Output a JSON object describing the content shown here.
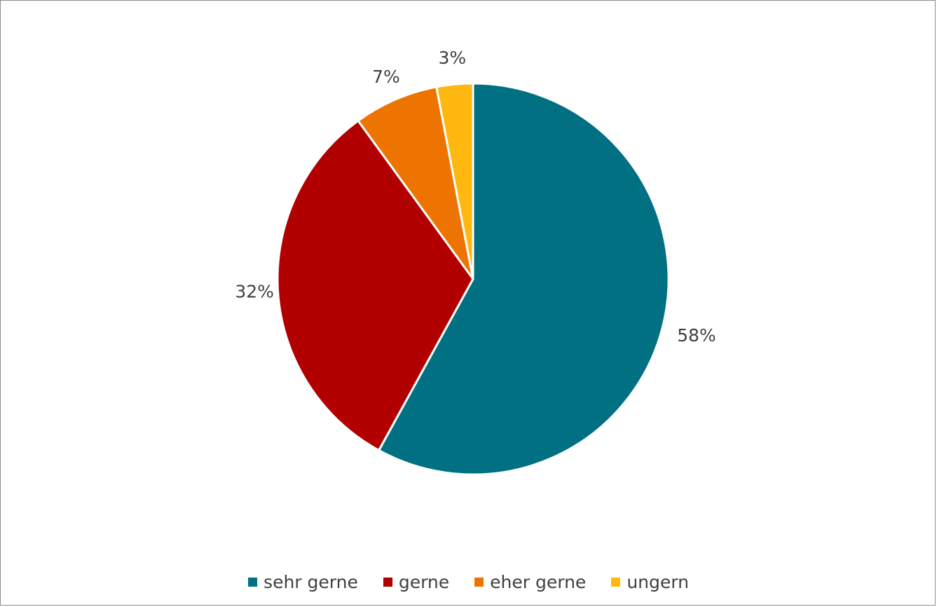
{
  "chart_data": {
    "type": "pie",
    "title": "",
    "categories": [
      "sehr gerne",
      "gerne",
      "eher gerne",
      "ungern"
    ],
    "values": [
      58,
      32,
      7,
      3
    ],
    "labels": [
      "58%",
      "32%",
      "7%",
      "3%"
    ],
    "colors": [
      "#007082",
      "#B20000",
      "#ED7400",
      "#FFB80F"
    ],
    "legend_position": "bottom",
    "start_angle": "12 o'clock",
    "direction": "clockwise"
  }
}
